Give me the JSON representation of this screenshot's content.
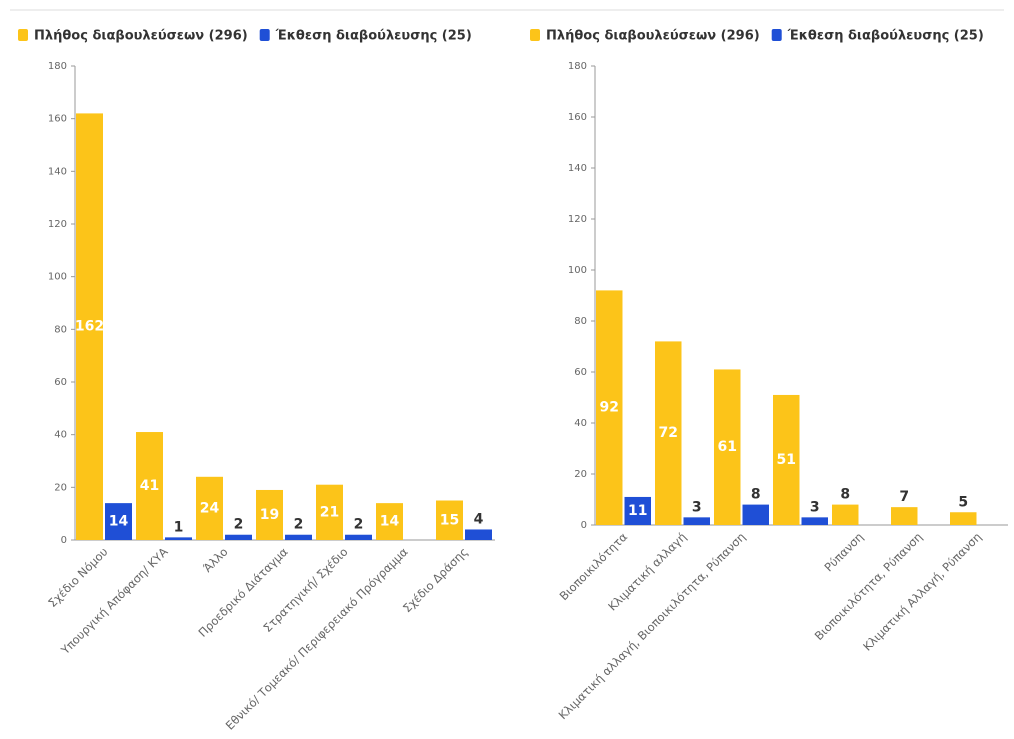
{
  "chart_data": [
    {
      "type": "bar",
      "categories": [
        "Σχέδιο Νόμου",
        "Υπουργική Απόφαση/ ΚΥΑ",
        "Άλλο",
        "Προεδρικό Διάταγμα",
        "Στρατηγική/ Σχέδιο",
        "Εθνικό/ Τομεακό/ Περιφερειακό Πρόγραμμα",
        "Σχέδιο Δράσης"
      ],
      "series": [
        {
          "name": "Πλήθος διαβουλεύσεων (296)",
          "color": "#fcc419",
          "values": [
            162,
            41,
            24,
            19,
            21,
            14,
            15
          ]
        },
        {
          "name": "Έκθεση διαβούλευσης (25)",
          "color": "#1f4fd6",
          "values": [
            14,
            1,
            2,
            2,
            2,
            null,
            4
          ]
        }
      ],
      "ylim": [
        0,
        180
      ],
      "yticks": [
        0,
        20,
        40,
        60,
        80,
        100,
        120,
        140,
        160,
        180
      ]
    },
    {
      "type": "bar",
      "categories": [
        "Βιοποικιλότητα",
        "Κλιματική αλλαγή",
        "Κλιματική αλλαγή, Βιοποικιλότητα, Ρύπανση",
        null,
        "Ρύπανση",
        "Βιοποικιλότητα, Ρύπανση",
        "Κλιματική Αλλαγή, Ρύπανση"
      ],
      "series": [
        {
          "name": "Πλήθος διαβουλεύσεων (296)",
          "color": "#fcc419",
          "values": [
            92,
            72,
            61,
            51,
            8,
            7,
            5
          ]
        },
        {
          "name": "Έκθεση διαβούλευσης (25)",
          "color": "#1f4fd6",
          "values": [
            11,
            3,
            8,
            3,
            null,
            null,
            null
          ]
        }
      ],
      "ylim": [
        0,
        180
      ],
      "yticks": [
        0,
        20,
        40,
        60,
        80,
        100,
        120,
        140,
        160,
        180
      ]
    }
  ]
}
